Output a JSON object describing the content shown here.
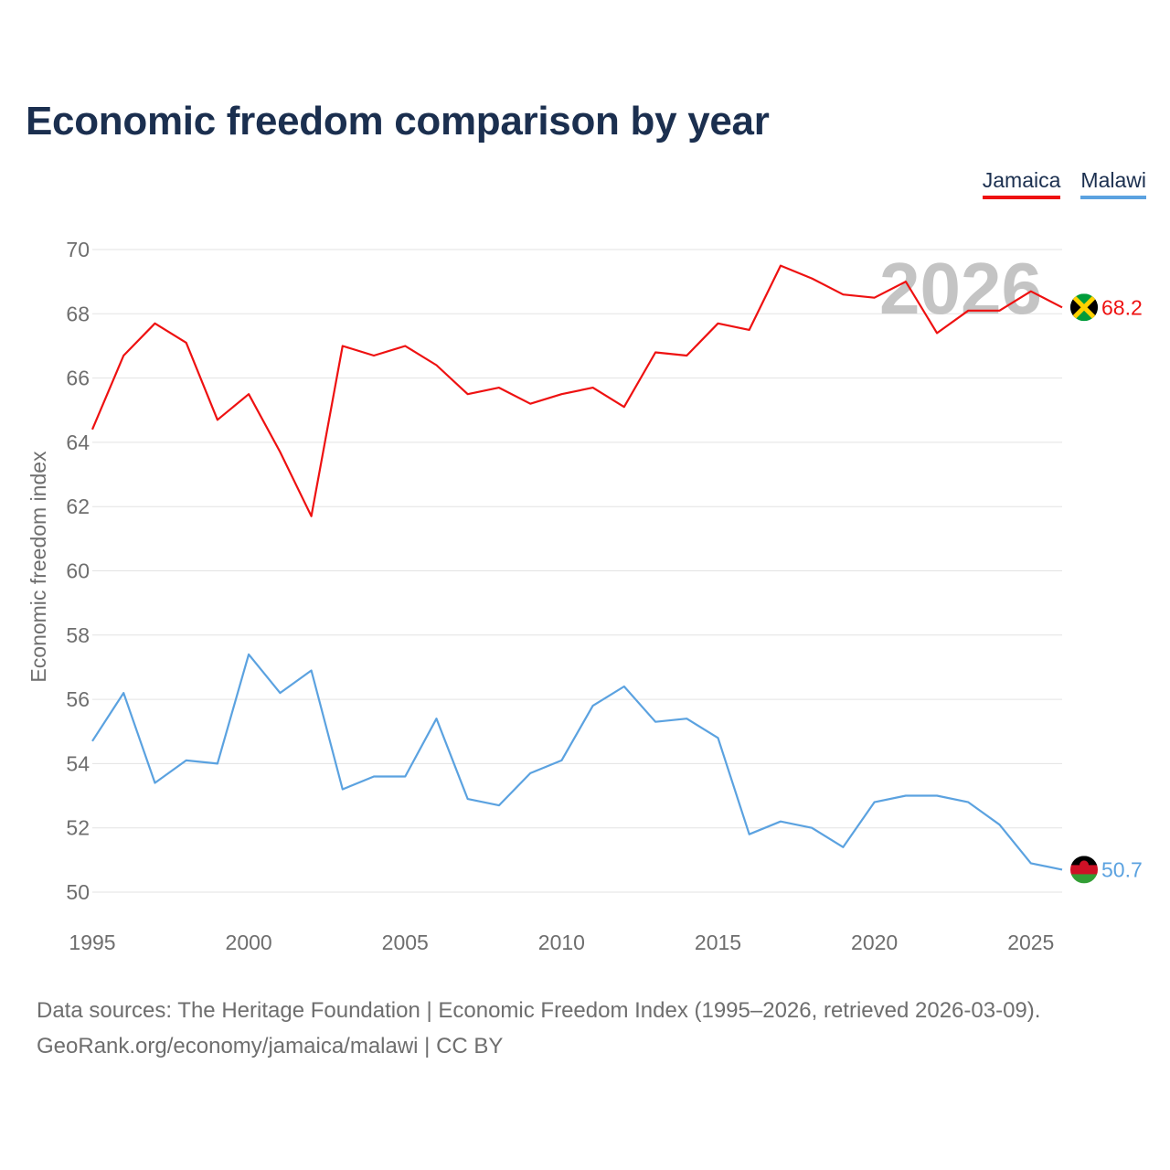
{
  "title": "Economic freedom comparison by year",
  "legend": [
    {
      "label": "Jamaica",
      "color": "#ee1111"
    },
    {
      "label": "Malawi",
      "color": "#5ba2e0"
    }
  ],
  "chart_data": {
    "type": "line",
    "title": "Economic freedom comparison by year",
    "xlabel": "",
    "ylabel": "Economic freedom index",
    "xlim": [
      1995,
      2026
    ],
    "ylim": [
      49,
      71
    ],
    "x_ticks": [
      "1995",
      "2000",
      "2005",
      "2010",
      "2015",
      "2020",
      "2025"
    ],
    "y_ticks": [
      "50",
      "52",
      "54",
      "56",
      "58",
      "60",
      "62",
      "64",
      "66",
      "68",
      "70"
    ],
    "year_watermark": "2026",
    "x": [
      1995,
      1996,
      1997,
      1998,
      1999,
      2000,
      2001,
      2002,
      2003,
      2004,
      2005,
      2006,
      2007,
      2008,
      2009,
      2010,
      2011,
      2012,
      2013,
      2014,
      2015,
      2016,
      2017,
      2018,
      2019,
      2020,
      2021,
      2022,
      2023,
      2024,
      2025,
      2026
    ],
    "series": [
      {
        "name": "Jamaica",
        "color": "#ee1111",
        "end_label": "68.2",
        "values": [
          64.4,
          66.7,
          67.7,
          67.1,
          64.7,
          65.5,
          63.7,
          61.7,
          67.0,
          66.7,
          67.0,
          66.4,
          65.5,
          65.7,
          65.2,
          65.5,
          65.7,
          65.1,
          66.8,
          66.7,
          67.7,
          67.5,
          69.5,
          69.1,
          68.6,
          68.5,
          69.0,
          67.4,
          68.1,
          68.1,
          68.7,
          68.2
        ]
      },
      {
        "name": "Malawi",
        "color": "#5ba2e0",
        "end_label": "50.7",
        "values": [
          54.7,
          56.2,
          53.4,
          54.1,
          54.0,
          57.4,
          56.2,
          56.9,
          53.2,
          53.6,
          53.6,
          55.4,
          52.9,
          52.7,
          53.7,
          54.1,
          55.8,
          56.4,
          55.3,
          55.4,
          54.8,
          51.8,
          52.2,
          52.0,
          51.4,
          52.8,
          53.0,
          53.0,
          52.8,
          52.1,
          50.9,
          50.7
        ]
      }
    ]
  },
  "source": {
    "line1": "Data sources: The Heritage Foundation | Economic Freedom Index (1995–2026, retrieved 2026-03-09).",
    "line2": "GeoRank.org/economy/jamaica/malawi | CC BY"
  }
}
